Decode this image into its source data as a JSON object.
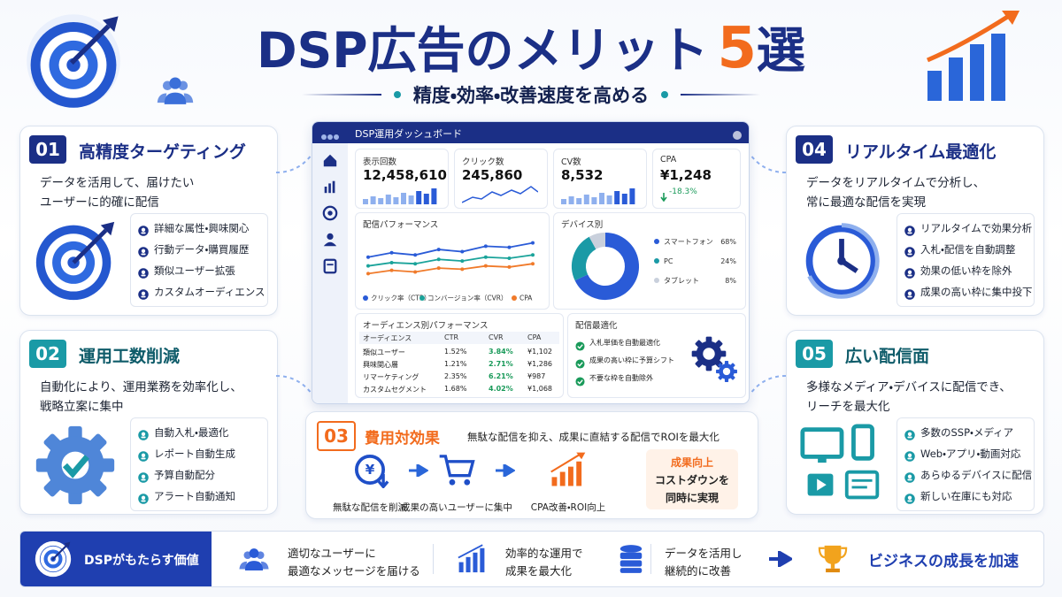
{
  "header": {
    "title_main": "DSP広告のメリット",
    "title_num": "5",
    "title_end": "選",
    "subtitle": "精度・効率・改善速度を高める"
  },
  "cards": [
    {
      "number": "01",
      "title": "高精度ターゲティング",
      "desc": [
        "データを活用して、届けたい",
        "ユーザーに的確に配信"
      ],
      "items": [
        "詳細な属性・興味関心",
        "行動データ・購買履歴",
        "類似ユーザー拡張",
        "カスタムオーディエンス"
      ]
    },
    {
      "number": "02",
      "title": "運用工数削減",
      "desc": [
        "自動化により、運用業務を効率化し、",
        "戦略立案に集中"
      ],
      "items": [
        "自動入札・最適化",
        "レポート自動生成",
        "予算自動配分",
        "アラート自動通知"
      ]
    },
    {
      "number": "03",
      "title": "費用対効果",
      "desc": [
        "無駄な配信を抑え、成果に直結する配信でROIを最大化"
      ],
      "steps": [
        "無駄な配信を削減",
        "成果の高いユーザーに集中",
        "CPA改善・ROI向上"
      ],
      "result": [
        "成果向上",
        "コストダウンを",
        "同時に実現"
      ]
    },
    {
      "number": "04",
      "title": "リアルタイム最適化",
      "desc": [
        "データをリアルタイムで分析し、",
        "常に最適な配信を実現"
      ],
      "items": [
        "リアルタイムで効果分析",
        "入札・配信を自動調整",
        "効果の低い枠を除外",
        "成果の高い枠に集中投下"
      ]
    },
    {
      "number": "05",
      "title": "広い配信面",
      "desc": [
        "多様なメディア・デバイスに配信でき、",
        "リーチを最大化"
      ],
      "items": [
        "多数のSSP・メディア",
        "Web・アプリ・動画対応",
        "あらゆるデバイスに配信",
        "新しい在庫にも対応"
      ]
    }
  ],
  "dashboard": {
    "title": "DSP運用ダッシュボード",
    "kpis": [
      {
        "label": "表示回数",
        "value": "12,458,610"
      },
      {
        "label": "クリック数",
        "value": "245,860"
      },
      {
        "label": "CV数",
        "value": "8,532"
      },
      {
        "label": "CPA",
        "value": "¥1,248",
        "change": "-18.3%"
      }
    ],
    "audience": {
      "title": "オーディエンス別パフォーマンス",
      "header": [
        "オーディエンス",
        "CTR",
        "CVR",
        "CPA"
      ],
      "rows": [
        [
          "類似ユーザー",
          "1.52%",
          "3.84%",
          "¥1,102"
        ],
        [
          "興味関心層",
          "1.21%",
          "2.71%",
          "¥1,286"
        ],
        [
          "リマーケティング",
          "2.35%",
          "6.21%",
          "¥987"
        ],
        [
          "カスタムセグメント",
          "1.68%",
          "4.02%",
          "¥1,068"
        ]
      ]
    },
    "optimization": {
      "title": "配信最適化",
      "items": [
        "入札単価を自動最適化",
        "成果の高い枠に予算シフト",
        "不要な枠を自動除外"
      ]
    }
  },
  "chart_data": [
    {
      "type": "line",
      "title": "配信パフォーマンス",
      "categories": [
        null,
        null,
        null,
        null,
        null,
        null,
        null,
        null
      ],
      "ylim": [
        0,
        10
      ],
      "series": [
        {
          "name": "クリック率（CTR）",
          "color": "#2a5bd7",
          "values": [
            5.2,
            6.0,
            5.6,
            6.6,
            6.2,
            7.2,
            7.0,
            7.8
          ]
        },
        {
          "name": "コンバージョン率（CVR）",
          "color": "#1aa39a",
          "values": [
            3.6,
            4.2,
            4.0,
            4.8,
            4.5,
            5.2,
            5.0,
            5.6
          ]
        },
        {
          "name": "CPA",
          "color": "#f07a2a",
          "values": [
            2.2,
            2.8,
            2.5,
            3.2,
            3.0,
            3.6,
            3.4,
            4.0
          ]
        }
      ]
    },
    {
      "type": "pie",
      "title": "デバイス別",
      "categories": [
        "スマートフォン",
        "PC",
        "タブレット"
      ],
      "values": [
        68,
        24,
        8
      ],
      "value_labels": [
        "68%",
        "24%",
        "8%"
      ],
      "colors": [
        "#2a5bd7",
        "#1a9aa6",
        "#c9d0dc"
      ]
    }
  ],
  "footer": {
    "label": "DSPがもたらす価値",
    "items": [
      [
        "適切なユーザーに",
        "最適なメッセージを届ける"
      ],
      [
        "効率的な運用で",
        "成果を最大化"
      ],
      [
        "データを活用し",
        "継続的に改善"
      ]
    ],
    "goal": "ビジネスの成長を加速"
  }
}
